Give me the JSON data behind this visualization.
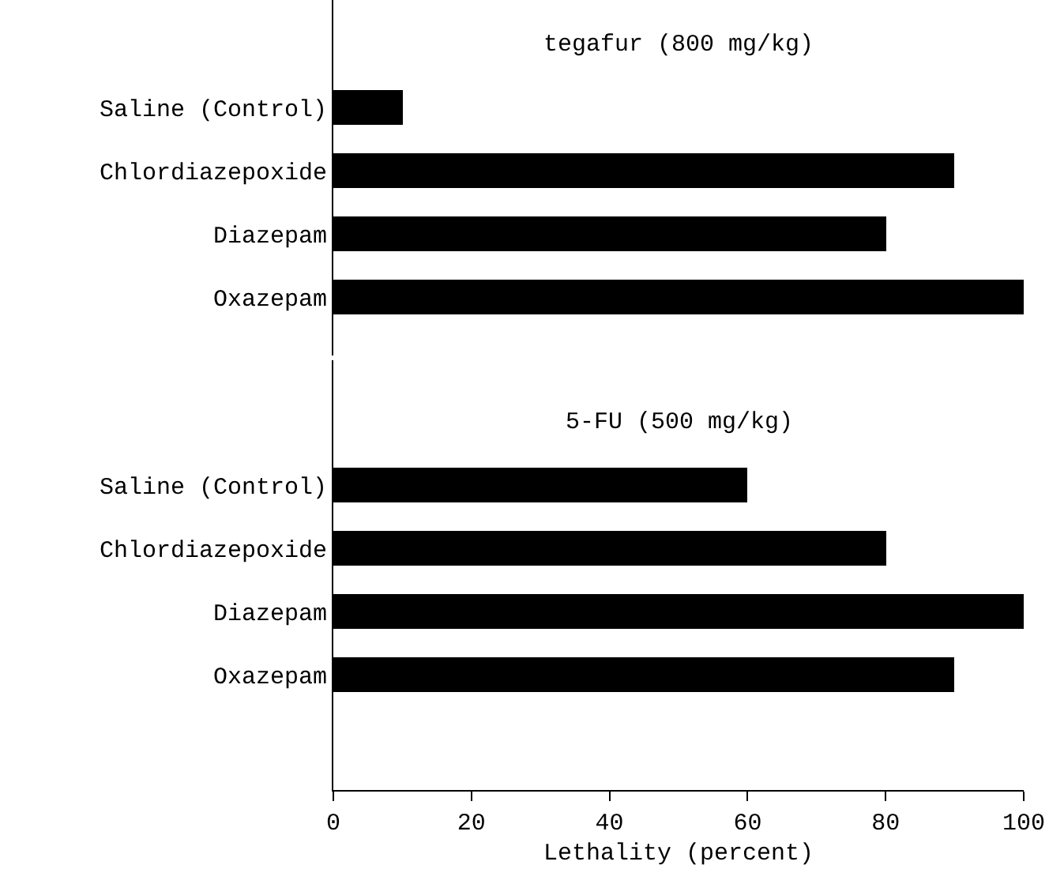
{
  "chart_data": [
    {
      "type": "bar",
      "orientation": "horizontal",
      "title": "tegafur (800 mg/kg)",
      "categories": [
        "Saline (Control)",
        "Chlordiazepoxide",
        "Diazepam",
        "Oxazepam"
      ],
      "values": [
        10,
        90,
        80,
        100
      ],
      "color": "#000000",
      "xlim": [
        0,
        100
      ],
      "tick_labels": "y"
    },
    {
      "type": "bar",
      "orientation": "horizontal",
      "title": "5-FU (500 mg/kg)",
      "categories": [
        "Saline (Control)",
        "Chlordiazepoxide",
        "Diazepam",
        "Oxazepam"
      ],
      "values": [
        60,
        80,
        100,
        90
      ],
      "color": "#000000",
      "xlim": [
        0,
        100
      ],
      "xticks": [
        0,
        20,
        40,
        60,
        80,
        100
      ],
      "xlabel": "Lethality (percent)"
    }
  ]
}
